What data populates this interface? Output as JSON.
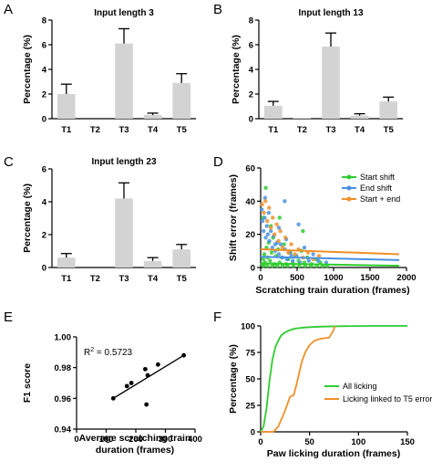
{
  "chart_data": [
    {
      "panel": "A",
      "type": "bar",
      "title": "Input length 3",
      "ylabel": "Percentage (%)",
      "categories": [
        "T1",
        "T2",
        "T3",
        "T4",
        "T5"
      ],
      "values": [
        2.0,
        0.0,
        6.1,
        0.3,
        2.9
      ],
      "errors": [
        0.8,
        0.0,
        1.2,
        0.15,
        0.75
      ],
      "ylim": [
        0,
        8
      ],
      "yticks": [
        "0",
        "2",
        "4",
        "6",
        "8"
      ],
      "yticks_values": [
        0,
        2,
        4,
        6,
        8
      ],
      "bar_color": "#d3d3d3"
    },
    {
      "panel": "B",
      "type": "bar",
      "title": "Input length 13",
      "ylabel": "Percentage (%)",
      "categories": [
        "T1",
        "T2",
        "T3",
        "T4",
        "T5"
      ],
      "values": [
        1.05,
        0.05,
        5.85,
        0.25,
        1.4
      ],
      "errors": [
        0.35,
        0.0,
        1.1,
        0.15,
        0.35
      ],
      "ylim": [
        0,
        8
      ],
      "yticks": [
        "0",
        "2",
        "4",
        "6",
        "8"
      ],
      "yticks_values": [
        0,
        2,
        4,
        6,
        8
      ],
      "bar_color": "#d3d3d3"
    },
    {
      "panel": "C",
      "type": "bar",
      "title": "Input length 23",
      "ylabel": "Percentage (%)",
      "categories": [
        "T1",
        "T2",
        "T3",
        "T4",
        "T5"
      ],
      "values": [
        0.6,
        0.0,
        4.2,
        0.4,
        1.1
      ],
      "errors": [
        0.25,
        0.0,
        0.95,
        0.2,
        0.3
      ],
      "ylim": [
        0,
        6
      ],
      "yticks": [
        "0",
        "2",
        "4",
        "6"
      ],
      "yticks_values": [
        0,
        2,
        4,
        6
      ],
      "bar_color": "#d3d3d3"
    },
    {
      "panel": "D",
      "type": "scatter",
      "xlabel": "Scratching train duration (frames)",
      "ylabel": "Shift error (frames)",
      "xlim": [
        0,
        2000
      ],
      "ylim": [
        0,
        60
      ],
      "xticks": [
        "0",
        "500",
        "1000",
        "1500",
        "2000"
      ],
      "xticks_values": [
        0,
        500,
        1000,
        1500,
        2000
      ],
      "yticks": [
        "0",
        "20",
        "40",
        "60"
      ],
      "yticks_values": [
        0,
        20,
        40,
        60
      ],
      "legend_position": "top-right",
      "series": [
        {
          "name": "Start shift",
          "color": "#2ecc2e",
          "points": [
            [
              20,
              2
            ],
            [
              35,
              5
            ],
            [
              50,
              8
            ],
            [
              60,
              3
            ],
            [
              80,
              12
            ],
            [
              95,
              6
            ],
            [
              110,
              15
            ],
            [
              130,
              4
            ],
            [
              150,
              9
            ],
            [
              170,
              18
            ],
            [
              190,
              2
            ],
            [
              210,
              7
            ],
            [
              240,
              11
            ],
            [
              260,
              3
            ],
            [
              290,
              6
            ],
            [
              320,
              14
            ],
            [
              350,
              2
            ],
            [
              380,
              5
            ],
            [
              410,
              9
            ],
            [
              440,
              3
            ],
            [
              480,
              7
            ],
            [
              520,
              4
            ],
            [
              560,
              10
            ],
            [
              600,
              3
            ],
            [
              640,
              6
            ],
            [
              700,
              2
            ],
            [
              760,
              5
            ],
            [
              820,
              3
            ],
            [
              70,
              48
            ],
            [
              30,
              30
            ],
            [
              140,
              25
            ],
            [
              260,
              30
            ],
            [
              580,
              22
            ],
            [
              40,
              1
            ],
            [
              90,
              1
            ],
            [
              160,
              1
            ],
            [
              230,
              1
            ],
            [
              300,
              1
            ],
            [
              370,
              1
            ],
            [
              450,
              1
            ],
            [
              530,
              1
            ],
            [
              610,
              1
            ],
            [
              690,
              1
            ],
            [
              770,
              1
            ],
            [
              850,
              1
            ],
            [
              910,
              1
            ]
          ],
          "fit": [
            [
              0,
              2.5
            ],
            [
              1900,
              1.0
            ]
          ]
        },
        {
          "name": "End shift",
          "color": "#4a90e2",
          "points": [
            [
              15,
              35
            ],
            [
              25,
              28
            ],
            [
              40,
              22
            ],
            [
              55,
              30
            ],
            [
              70,
              18
            ],
            [
              85,
              25
            ],
            [
              100,
              20
            ],
            [
              120,
              16
            ],
            [
              140,
              22
            ],
            [
              160,
              12
            ],
            [
              180,
              19
            ],
            [
              200,
              10
            ],
            [
              225,
              15
            ],
            [
              250,
              8
            ],
            [
              275,
              14
            ],
            [
              300,
              6
            ],
            [
              330,
              11
            ],
            [
              360,
              5
            ],
            [
              400,
              9
            ],
            [
              440,
              4
            ],
            [
              490,
              7
            ],
            [
              540,
              3
            ],
            [
              600,
              12
            ],
            [
              660,
              4
            ],
            [
              720,
              8
            ],
            [
              790,
              4
            ],
            [
              250,
              24
            ],
            [
              520,
              26
            ],
            [
              330,
              40
            ],
            [
              110,
              33
            ],
            [
              60,
              42
            ],
            [
              200,
              14
            ],
            [
              350,
              17
            ],
            [
              420,
              7
            ],
            [
              900,
              3
            ]
          ],
          "fit": [
            [
              0,
              6.5
            ],
            [
              1900,
              4.5
            ]
          ]
        },
        {
          "name": "Start + end",
          "color": "#f0902a",
          "points": [
            [
              20,
              38
            ],
            [
              45,
              33
            ],
            [
              65,
              40
            ],
            [
              90,
              28
            ],
            [
              115,
              36
            ],
            [
              140,
              24
            ],
            [
              165,
              30
            ],
            [
              190,
              20
            ],
            [
              220,
              26
            ],
            [
              245,
              16
            ],
            [
              270,
              22
            ],
            [
              300,
              12
            ],
            [
              340,
              18
            ],
            [
              380,
              9
            ],
            [
              420,
              14
            ],
            [
              470,
              8
            ],
            [
              520,
              11
            ],
            [
              580,
              6
            ],
            [
              650,
              9
            ],
            [
              720,
              5
            ],
            [
              800,
              7
            ]
          ],
          "fit": [
            [
              0,
              11
            ],
            [
              1900,
              8
            ]
          ]
        }
      ]
    },
    {
      "panel": "E",
      "type": "scatter",
      "xlabel": "Average scratching train duration (frames)",
      "ylabel": "F1 score",
      "annotation_base": "R",
      "annotation_sup": "2",
      "annotation_value": " = 0.5723",
      "xlim": [
        0,
        400
      ],
      "ylim": [
        0.94,
        1.0
      ],
      "xticks": [
        "0",
        "100",
        "200",
        "300",
        "400"
      ],
      "xticks_values": [
        0,
        100,
        200,
        300,
        400
      ],
      "yticks": [
        "0.94",
        "0.96",
        "0.98",
        "1.00"
      ],
      "yticks_values": [
        0.94,
        0.96,
        0.98,
        1.0
      ],
      "points": [
        [
          124,
          0.96
        ],
        [
          170,
          0.968
        ],
        [
          185,
          0.97
        ],
        [
          232,
          0.979
        ],
        [
          240,
          0.975
        ],
        [
          236,
          0.956
        ],
        [
          275,
          0.982
        ],
        [
          362,
          0.988
        ]
      ],
      "fit": [
        [
          124,
          0.96
        ],
        [
          362,
          0.988
        ]
      ],
      "color": "#000000"
    },
    {
      "panel": "F",
      "type": "line",
      "xlabel": "Paw licking duration (frames)",
      "ylabel": "Percentage (%)",
      "xlim": [
        0,
        150
      ],
      "ylim": [
        0,
        100
      ],
      "xticks": [
        "0",
        "50",
        "100",
        "150"
      ],
      "xticks_values": [
        0,
        50,
        100,
        150
      ],
      "yticks": [
        "0",
        "25",
        "50",
        "75",
        "100"
      ],
      "yticks_values": [
        0,
        25,
        50,
        75,
        100
      ],
      "legend_position": "right",
      "series": [
        {
          "name": "All licking",
          "color": "#2ecc2e",
          "points": [
            [
              0,
              0
            ],
            [
              3,
              5
            ],
            [
              6,
              22
            ],
            [
              9,
              48
            ],
            [
              12,
              68
            ],
            [
              15,
              80
            ],
            [
              18,
              86
            ],
            [
              21,
              91
            ],
            [
              25,
              94
            ],
            [
              30,
              96
            ],
            [
              35,
              97.5
            ],
            [
              45,
              98.5
            ],
            [
              60,
              99.3
            ],
            [
              80,
              99.7
            ],
            [
              110,
              100
            ],
            [
              150,
              100
            ]
          ]
        },
        {
          "name": "Licking linked to T5 error",
          "color": "#f0902a",
          "points": [
            [
              0,
              0
            ],
            [
              8,
              0
            ],
            [
              13,
              0
            ],
            [
              18,
              5
            ],
            [
              25,
              20
            ],
            [
              30,
              33
            ],
            [
              34,
              35
            ],
            [
              38,
              50
            ],
            [
              42,
              66
            ],
            [
              46,
              76
            ],
            [
              50,
              82
            ],
            [
              55,
              86
            ],
            [
              62,
              88
            ],
            [
              70,
              89
            ],
            [
              74,
              95
            ],
            [
              76,
              100
            ]
          ]
        }
      ]
    }
  ]
}
